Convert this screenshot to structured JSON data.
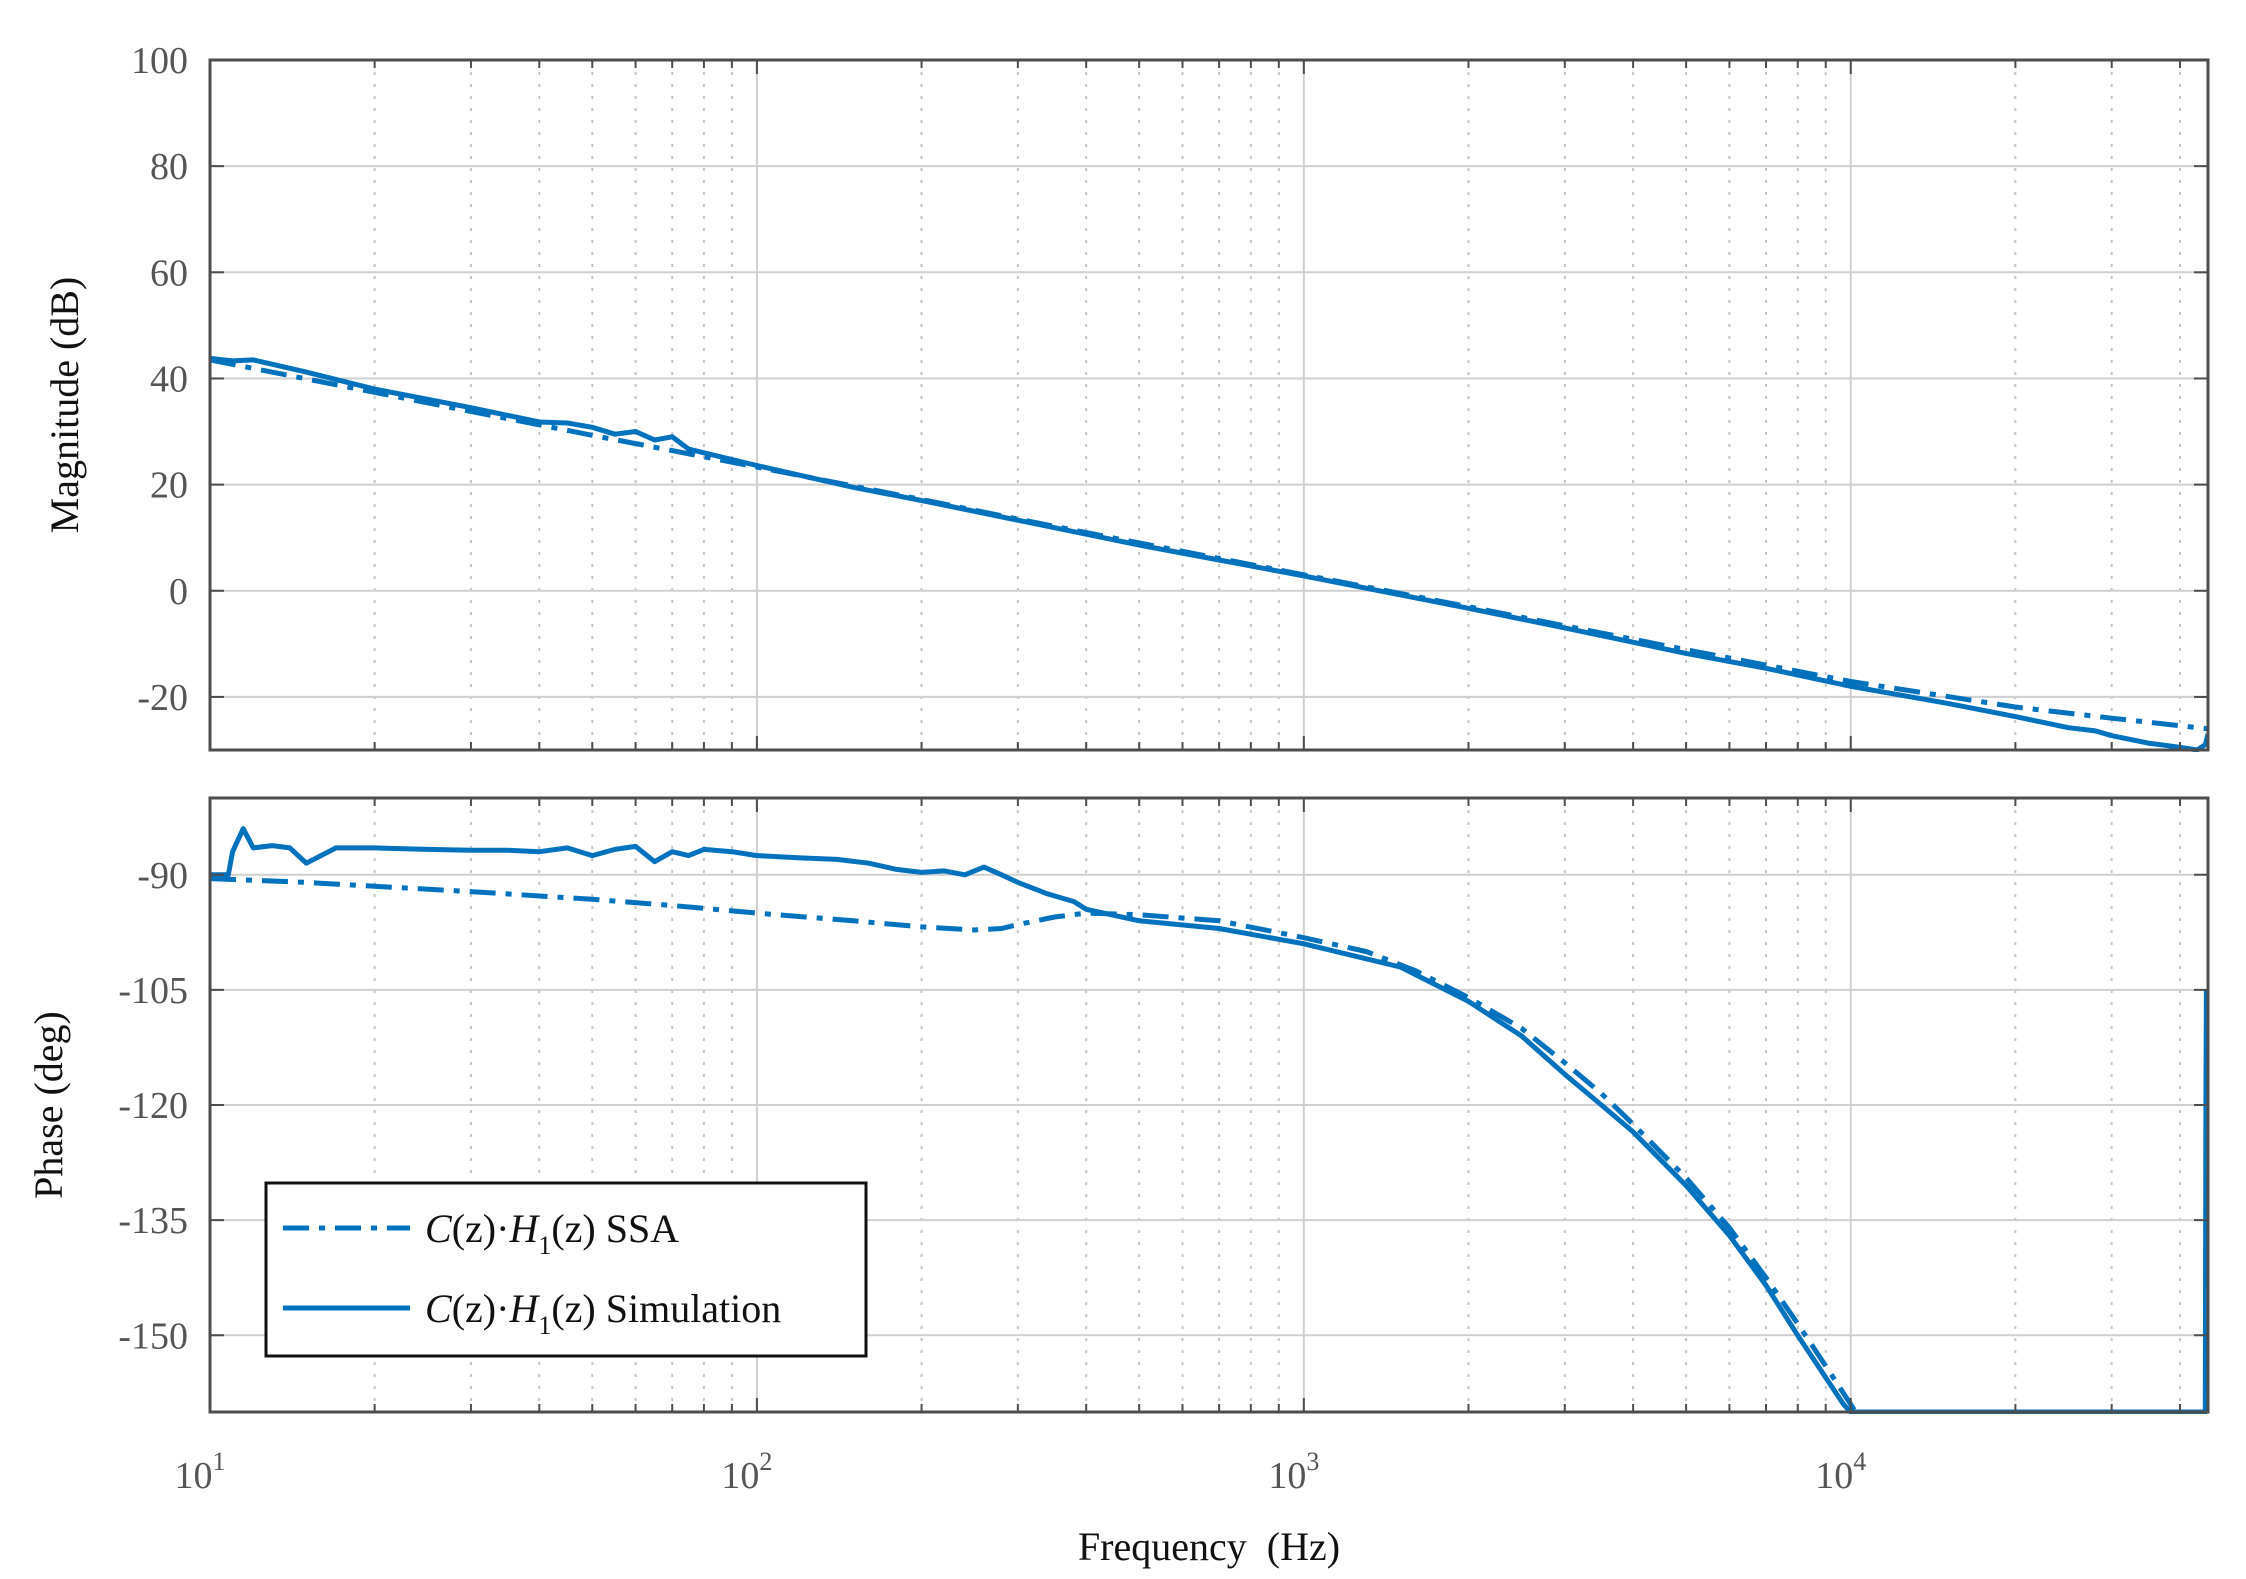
{
  "colors": {
    "line": "#0072BD",
    "major_grid": "#cfcfcf",
    "minor_grid": "#c4c4c4",
    "axis": "#4d4d4d"
  },
  "chart_data": [
    {
      "type": "line",
      "panel": "magnitude",
      "xscale": "log",
      "xlim": [
        10,
        45000
      ],
      "ylim": [
        -30,
        100
      ],
      "yticks": [
        -20,
        0,
        20,
        40,
        60,
        80,
        100
      ],
      "ytick_labels": [
        "-20",
        "0",
        "20",
        "40",
        "60",
        "80",
        "100"
      ],
      "ylabel": "Magnitude (dB)",
      "grid": true,
      "series": [
        {
          "name": "SSA",
          "style": "dash-dot",
          "x": [
            10,
            20,
            30,
            50,
            70,
            100,
            200,
            300,
            500,
            700,
            1000,
            2000,
            3000,
            5000,
            7000,
            10000,
            20000,
            30000,
            45000
          ],
          "y": [
            43.5,
            37.4,
            33.8,
            29.3,
            26.4,
            23.3,
            17.2,
            13.5,
            9.0,
            6.1,
            3.0,
            -3.0,
            -6.6,
            -11.1,
            -14.0,
            -17.1,
            -21.9,
            -24.0,
            -26.0
          ]
        },
        {
          "name": "Simulation",
          "style": "solid",
          "x": [
            10,
            11,
            12,
            15,
            20,
            30,
            40,
            45,
            50,
            55,
            60,
            65,
            70,
            75,
            80,
            100,
            150,
            200,
            300,
            500,
            700,
            1000,
            2000,
            3000,
            5000,
            7000,
            10000,
            15000,
            20000,
            25000,
            28000,
            30000,
            35000,
            40000,
            43000,
            44500,
            45000
          ],
          "y": [
            43.8,
            43.3,
            43.5,
            41.2,
            38.0,
            34.5,
            31.8,
            31.6,
            30.8,
            29.5,
            30.0,
            28.4,
            29.0,
            26.7,
            26.0,
            23.6,
            19.5,
            17.0,
            13.3,
            8.6,
            5.8,
            2.8,
            -3.3,
            -7.0,
            -11.8,
            -14.6,
            -18.0,
            -21.2,
            -23.7,
            -25.8,
            -26.4,
            -27.3,
            -28.7,
            -29.5,
            -30.0,
            -29.0,
            -27.0
          ]
        }
      ]
    },
    {
      "type": "line",
      "panel": "phase",
      "xscale": "log",
      "xlim": [
        10,
        45000
      ],
      "ylim": [
        -160,
        -80
      ],
      "yticks": [
        -150,
        -135,
        -120,
        -105,
        -90
      ],
      "ytick_labels": [
        "-150",
        "-135",
        "-120",
        "-105",
        "-90"
      ],
      "xticks": [
        10,
        100,
        1000,
        10000
      ],
      "xtick_bases": [
        "10",
        "10",
        "10",
        "10"
      ],
      "xtick_exps": [
        "1",
        "2",
        "3",
        "4"
      ],
      "ylabel": "Phase (deg)",
      "xlabel": "Frequency  (Hz)",
      "grid": true,
      "series": [
        {
          "name": "SSA",
          "style": "dash-dot",
          "x": [
            10,
            15,
            20,
            30,
            50,
            70,
            100,
            150,
            200,
            250,
            280,
            300,
            350,
            400,
            500,
            700,
            1000,
            1300,
            1600,
            2000,
            2500,
            3000,
            3500,
            4000,
            5000,
            6000,
            7000,
            8000,
            9000,
            10000,
            10200
          ],
          "y": [
            -90.5,
            -91.0,
            -91.5,
            -92.2,
            -93.2,
            -94.0,
            -95.0,
            -96.0,
            -96.8,
            -97.2,
            -97.0,
            -96.5,
            -95.5,
            -95.0,
            -95.2,
            -96.0,
            -98.2,
            -100.0,
            -102.5,
            -106.0,
            -110.0,
            -114.5,
            -118.5,
            -122.5,
            -129.5,
            -136.0,
            -142.5,
            -148.5,
            -154.0,
            -159.0,
            -160.0
          ]
        },
        {
          "name": "Simulation",
          "style": "solid",
          "x": [
            10,
            10.8,
            11,
            11.5,
            12,
            13,
            14,
            15,
            17,
            20,
            25,
            30,
            35,
            40,
            45,
            50,
            55,
            60,
            65,
            70,
            75,
            80,
            90,
            100,
            120,
            140,
            160,
            180,
            200,
            220,
            240,
            260,
            280,
            300,
            340,
            380,
            400,
            500,
            700,
            1000,
            1500,
            2000,
            2500,
            3000,
            3500,
            4000,
            5000,
            6000,
            7000,
            8000,
            9000,
            9700,
            10000,
            11000,
            20000,
            43000,
            44500,
            44600,
            44700
          ],
          "y": [
            -90.0,
            -90.0,
            -87.0,
            -84.0,
            -86.5,
            -86.2,
            -86.5,
            -88.5,
            -86.5,
            -86.5,
            -86.7,
            -86.8,
            -86.8,
            -87.0,
            -86.5,
            -87.5,
            -86.7,
            -86.3,
            -88.3,
            -87.0,
            -87.5,
            -86.7,
            -87.0,
            -87.5,
            -87.8,
            -88.0,
            -88.5,
            -89.3,
            -89.7,
            -89.5,
            -90.0,
            -89.0,
            -90.0,
            -91.0,
            -92.5,
            -93.5,
            -94.5,
            -96.0,
            -97.0,
            -99.0,
            -102.0,
            -106.5,
            -111.0,
            -116.0,
            -120.0,
            -123.5,
            -130.5,
            -137.0,
            -143.5,
            -150.0,
            -155.5,
            -159.0,
            -160.0,
            -160.0,
            -160.0,
            -160.0,
            -160.0,
            -120.0,
            -105.0
          ]
        }
      ]
    }
  ],
  "legend": {
    "position": "lower-left",
    "entries": [
      {
        "prefix_C": "C",
        "paren_z1": "(z)",
        "dot": "·",
        "H": "H",
        "sub": "1",
        "paren_z2": "(z)",
        "suffix": " SSA",
        "style": "dash-dot"
      },
      {
        "prefix_C": "C",
        "paren_z1": "(z)",
        "dot": "·",
        "H": "H",
        "sub": "1",
        "paren_z2": "(z)",
        "suffix": " Simulation",
        "style": "solid"
      }
    ]
  }
}
